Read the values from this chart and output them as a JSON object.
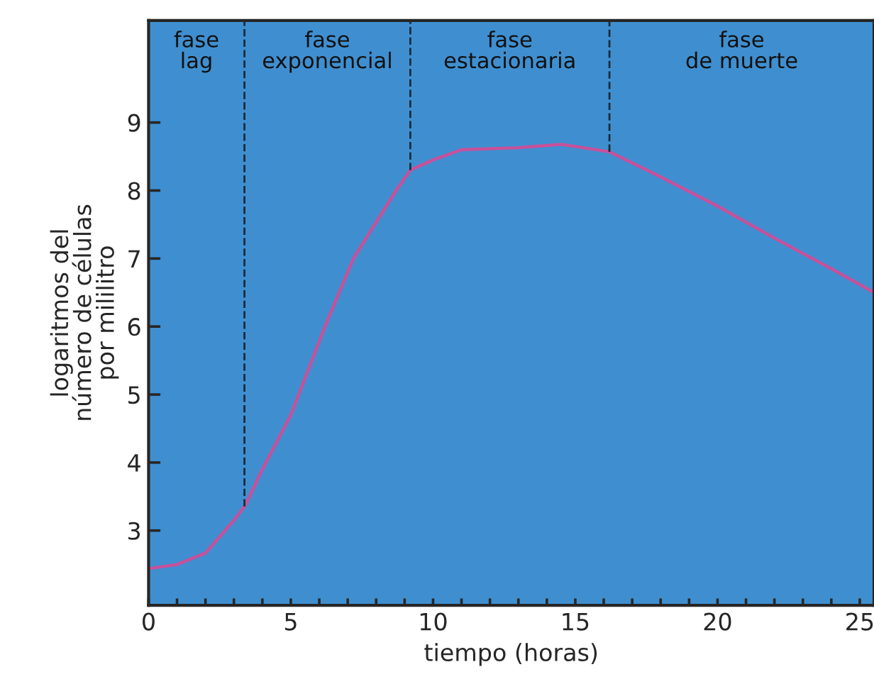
{
  "chart_data": {
    "type": "line",
    "xlabel": "tiempo (horas)",
    "ylabel": "logaritmos del\nnúmero de células\npor mililitro",
    "x": [
      0,
      1,
      2,
      3,
      3.4,
      4,
      5,
      6.2,
      7.2,
      8.7,
      9.2,
      10,
      11,
      13,
      14.5,
      16.2,
      18,
      20,
      22,
      24,
      25.5
    ],
    "series": [
      {
        "color": "#c8509a",
        "values": [
          2.44,
          2.5,
          2.67,
          3.15,
          3.37,
          3.9,
          4.7,
          6.0,
          7.0,
          8.0,
          8.3,
          8.45,
          8.6,
          8.63,
          8.68,
          8.57,
          8.2,
          7.77,
          7.3,
          6.85,
          6.5
        ]
      }
    ],
    "xlim": [
      0,
      25.5
    ],
    "ylim": [
      1.9,
      10.5
    ],
    "xticks": [
      0,
      {
        "value": 1,
        "label": null
      },
      {
        "value": 2,
        "label": null
      },
      {
        "value": 3,
        "label": null
      },
      {
        "value": 4,
        "label": null
      },
      5,
      {
        "value": 6,
        "label": null
      },
      {
        "value": 7,
        "label": null
      },
      {
        "value": 8,
        "label": null
      },
      {
        "value": 9,
        "label": null
      },
      10,
      {
        "value": 11,
        "label": null
      },
      {
        "value": 12,
        "label": null
      },
      {
        "value": 13,
        "label": null
      },
      {
        "value": 14,
        "label": null
      },
      15,
      {
        "value": 16,
        "label": null
      },
      {
        "value": 17,
        "label": null
      },
      {
        "value": 18,
        "label": null
      },
      {
        "value": 19,
        "label": null
      },
      20,
      {
        "value": 21,
        "label": null
      },
      {
        "value": 22,
        "label": null
      },
      {
        "value": 23,
        "label": null
      },
      {
        "value": 24,
        "label": null
      },
      25
    ],
    "yticks": [
      3,
      4,
      5,
      6,
      7,
      8,
      9
    ],
    "ref_lines": [
      {
        "axis": "x",
        "value": 3.37,
        "line_style": "dashed",
        "color": "#1a2a3a"
      },
      {
        "axis": "x",
        "value": 9.2,
        "line_style": "dashed",
        "color": "#1a2a3a"
      },
      {
        "axis": "x",
        "value": 16.2,
        "line_style": "dashed",
        "color": "#1a2a3a"
      }
    ],
    "annotations": [
      "fase\nlag",
      "fase\nexponencial",
      "fase\nestacionaria",
      "fase\nde muerte"
    ],
    "grid": false,
    "marker": "none",
    "line_style": "solid"
  }
}
